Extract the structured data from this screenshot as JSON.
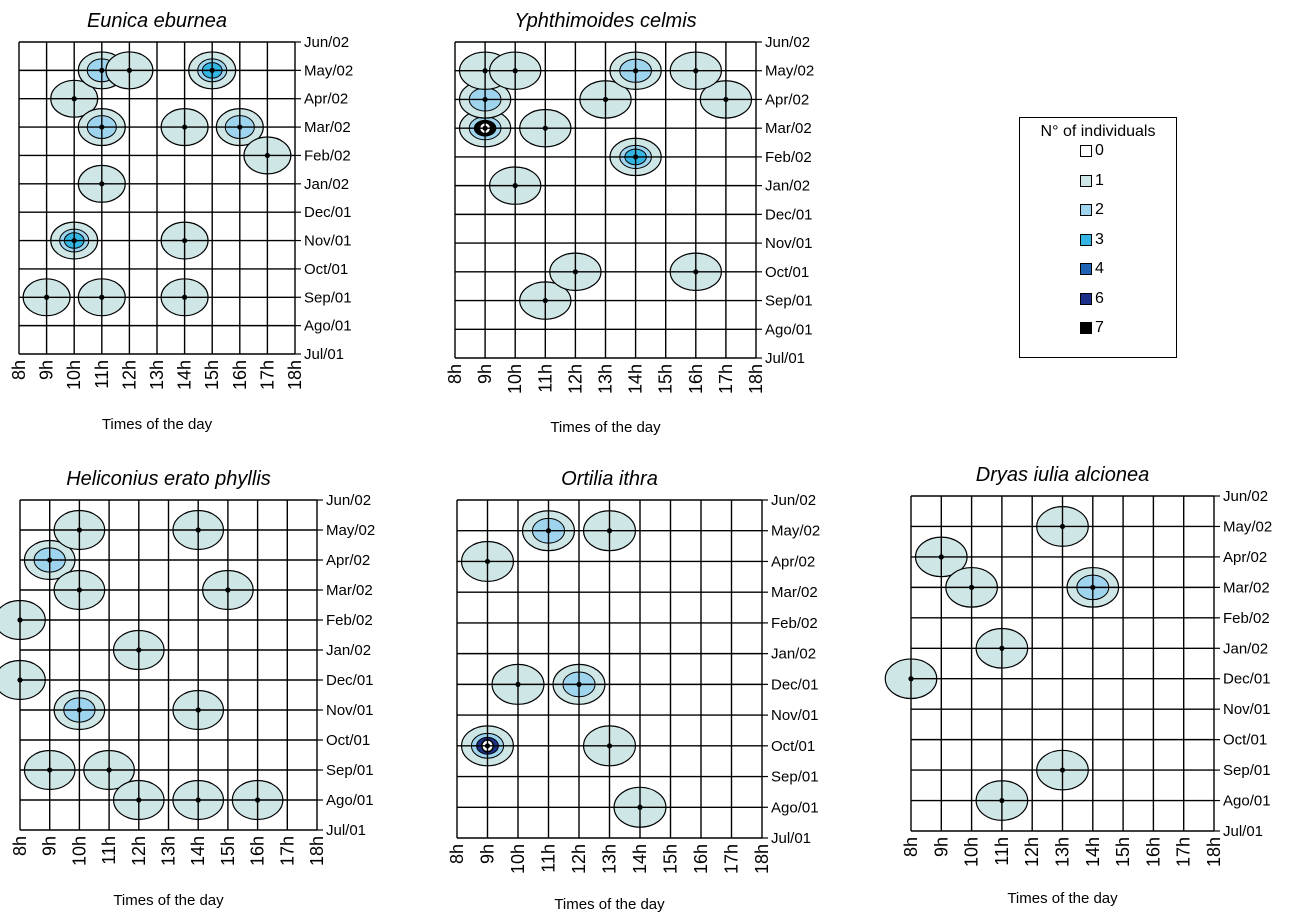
{
  "chart_data": [
    {
      "type": "heatmap",
      "title": "Eunica eburnea",
      "xlabel": "Times of the day",
      "x_ticks": [
        "8h",
        "9h",
        "10h",
        "11h",
        "12h",
        "13h",
        "14h",
        "15h",
        "16h",
        "17h",
        "18h"
      ],
      "y_ticks": [
        "Jul/01",
        "Ago/01",
        "Sep/01",
        "Oct/01",
        "Nov/01",
        "Dec/01",
        "Jan/02",
        "Feb/02",
        "Mar/02",
        "Apr/02",
        "May/02",
        "Jun/02"
      ],
      "cells": [
        {
          "x": "9h",
          "y": "Sep/01",
          "v": 1
        },
        {
          "x": "10h",
          "y": "Nov/01",
          "v": 3
        },
        {
          "x": "11h",
          "y": "Sep/01",
          "v": 1
        },
        {
          "x": "11h",
          "y": "Jan/02",
          "v": 1
        },
        {
          "x": "10h",
          "y": "Apr/02",
          "v": 1
        },
        {
          "x": "11h",
          "y": "Mar/02",
          "v": 2
        },
        {
          "x": "11h",
          "y": "May/02",
          "v": 2
        },
        {
          "x": "12h",
          "y": "May/02",
          "v": 1
        },
        {
          "x": "14h",
          "y": "Mar/02",
          "v": 1
        },
        {
          "x": "14h",
          "y": "Nov/01",
          "v": 1
        },
        {
          "x": "14h",
          "y": "Sep/01",
          "v": 1
        },
        {
          "x": "15h",
          "y": "May/02",
          "v": 3
        },
        {
          "x": "16h",
          "y": "Mar/02",
          "v": 2
        },
        {
          "x": "17h",
          "y": "Feb/02",
          "v": 1
        }
      ]
    },
    {
      "type": "heatmap",
      "title": "Yphthimoides celmis",
      "xlabel": "Times of the day",
      "x_ticks": [
        "8h",
        "9h",
        "10h",
        "11h",
        "12h",
        "13h",
        "14h",
        "15h",
        "16h",
        "17h",
        "18h"
      ],
      "y_ticks": [
        "Jul/01",
        "Ago/01",
        "Sep/01",
        "Oct/01",
        "Nov/01",
        "Dec/01",
        "Jan/02",
        "Feb/02",
        "Mar/02",
        "Apr/02",
        "May/02",
        "Jun/02"
      ],
      "cells": [
        {
          "x": "9h",
          "y": "Mar/02",
          "v": 7
        },
        {
          "x": "9h",
          "y": "Apr/02",
          "v": 2
        },
        {
          "x": "9h",
          "y": "May/02",
          "v": 1
        },
        {
          "x": "10h",
          "y": "May/02",
          "v": 1
        },
        {
          "x": "10h",
          "y": "Jan/02",
          "v": 1
        },
        {
          "x": "11h",
          "y": "Mar/02",
          "v": 1
        },
        {
          "x": "11h",
          "y": "Sep/01",
          "v": 1
        },
        {
          "x": "12h",
          "y": "Oct/01",
          "v": 1
        },
        {
          "x": "13h",
          "y": "Apr/02",
          "v": 1
        },
        {
          "x": "14h",
          "y": "May/02",
          "v": 2
        },
        {
          "x": "14h",
          "y": "Feb/02",
          "v": 3
        },
        {
          "x": "16h",
          "y": "Oct/01",
          "v": 1
        },
        {
          "x": "17h",
          "y": "Apr/02",
          "v": 1
        },
        {
          "x": "16h",
          "y": "May/02",
          "v": 1
        }
      ]
    },
    {
      "type": "heatmap",
      "title": "Heliconius erato phyllis",
      "xlabel": "Times of the day",
      "x_ticks": [
        "8h",
        "9h",
        "10h",
        "11h",
        "12h",
        "13h",
        "14h",
        "15h",
        "16h",
        "17h",
        "18h"
      ],
      "y_ticks": [
        "Jul/01",
        "Ago/01",
        "Sep/01",
        "Oct/01",
        "Nov/01",
        "Dec/01",
        "Jan/02",
        "Feb/02",
        "Mar/02",
        "Apr/02",
        "May/02",
        "Jun/02"
      ],
      "cells": [
        {
          "x": "8h",
          "y": "Feb/02",
          "v": 1
        },
        {
          "x": "9h",
          "y": "Apr/02",
          "v": 2
        },
        {
          "x": "10h",
          "y": "Mar/02",
          "v": 1
        },
        {
          "x": "10h",
          "y": "May/02",
          "v": 1
        },
        {
          "x": "10h",
          "y": "Nov/01",
          "v": 2
        },
        {
          "x": "12h",
          "y": "Jan/02",
          "v": 1
        },
        {
          "x": "8h",
          "y": "Dec/01",
          "v": 1
        },
        {
          "x": "9h",
          "y": "Sep/01",
          "v": 1
        },
        {
          "x": "11h",
          "y": "Sep/01",
          "v": 1
        },
        {
          "x": "12h",
          "y": "Ago/01",
          "v": 1
        },
        {
          "x": "14h",
          "y": "Ago/01",
          "v": 1
        },
        {
          "x": "14h",
          "y": "Nov/01",
          "v": 1
        },
        {
          "x": "14h",
          "y": "May/02",
          "v": 1
        },
        {
          "x": "15h",
          "y": "Mar/02",
          "v": 1
        },
        {
          "x": "16h",
          "y": "Ago/01",
          "v": 1
        }
      ]
    },
    {
      "type": "heatmap",
      "title": "Ortilia ithra",
      "xlabel": "Times of the day",
      "x_ticks": [
        "8h",
        "9h",
        "10h",
        "11h",
        "12h",
        "13h",
        "14h",
        "15h",
        "16h",
        "17h",
        "18h"
      ],
      "y_ticks": [
        "Jul/01",
        "Ago/01",
        "Sep/01",
        "Oct/01",
        "Nov/01",
        "Dec/01",
        "Jan/02",
        "Feb/02",
        "Mar/02",
        "Apr/02",
        "May/02",
        "Jun/02"
      ],
      "cells": [
        {
          "x": "9h",
          "y": "Apr/02",
          "v": 1
        },
        {
          "x": "11h",
          "y": "May/02",
          "v": 2
        },
        {
          "x": "13h",
          "y": "May/02",
          "v": 1
        },
        {
          "x": "12h",
          "y": "Dec/01",
          "v": 2
        },
        {
          "x": "10h",
          "y": "Dec/01",
          "v": 1
        },
        {
          "x": "9h",
          "y": "Oct/01",
          "v": 6
        },
        {
          "x": "13h",
          "y": "Oct/01",
          "v": 1
        },
        {
          "x": "14h",
          "y": "Ago/01",
          "v": 1
        }
      ]
    },
    {
      "type": "heatmap",
      "title": "Dryas iulia alcionea",
      "xlabel": "Times of the day",
      "x_ticks": [
        "8h",
        "9h",
        "10h",
        "11h",
        "12h",
        "13h",
        "14h",
        "15h",
        "16h",
        "17h",
        "18h"
      ],
      "y_ticks": [
        "Jul/01",
        "Ago/01",
        "Sep/01",
        "Oct/01",
        "Nov/01",
        "Dec/01",
        "Jan/02",
        "Feb/02",
        "Mar/02",
        "Apr/02",
        "May/02",
        "Jun/02"
      ],
      "cells": [
        {
          "x": "9h",
          "y": "Apr/02",
          "v": 1
        },
        {
          "x": "10h",
          "y": "Mar/02",
          "v": 1
        },
        {
          "x": "13h",
          "y": "May/02",
          "v": 1
        },
        {
          "x": "14h",
          "y": "Mar/02",
          "v": 2
        },
        {
          "x": "11h",
          "y": "Jan/02",
          "v": 1
        },
        {
          "x": "13h",
          "y": "Sep/01",
          "v": 1
        },
        {
          "x": "11h",
          "y": "Ago/01",
          "v": 1
        },
        {
          "x": "8h",
          "y": "Dec/01",
          "v": 1
        }
      ]
    }
  ],
  "legend": {
    "title": "N°  of individuals",
    "items": [
      {
        "label": "0",
        "color": "#ffffff"
      },
      {
        "label": "1",
        "color": "#cfe6e6"
      },
      {
        "label": "2",
        "color": "#9fd4ee"
      },
      {
        "label": "3",
        "color": "#33b6e4"
      },
      {
        "label": "4",
        "color": "#1f64b4"
      },
      {
        "label": "6",
        "color": "#1c2f8a"
      },
      {
        "label": "7",
        "color": "#000000"
      }
    ]
  },
  "colors": {
    "level_1": "#cfe6e6",
    "level_2": "#9fd4ee",
    "level_3": "#33b6e4",
    "level_4": "#1f64b4",
    "level_6": "#1c2f8a",
    "level_7": "#000000"
  }
}
